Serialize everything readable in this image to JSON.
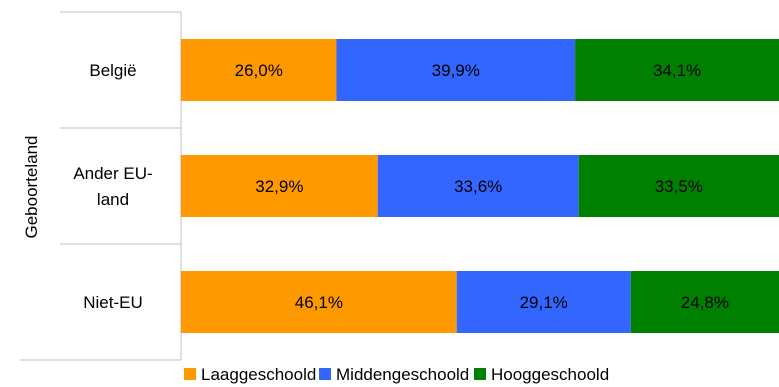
{
  "chart_data": {
    "type": "bar",
    "orientation": "horizontal",
    "stacked": true,
    "ylabel": "Geboorteland",
    "categories": [
      [
        "België"
      ],
      [
        "Ander EU-",
        "land"
      ],
      [
        "Niet-EU"
      ]
    ],
    "series": [
      {
        "name": "Laaggeschoold",
        "color": "#ff9900",
        "values": [
          26.0,
          32.9,
          46.1
        ],
        "labels": [
          "26,0%",
          "32,9%",
          "46,1%"
        ]
      },
      {
        "name": "Middengeschoold",
        "color": "#3366ff",
        "values": [
          39.9,
          33.6,
          29.1
        ],
        "labels": [
          "39,9%",
          "33,6%",
          "29,1%"
        ]
      },
      {
        "name": "Hooggeschoold",
        "color": "#008000",
        "values": [
          34.1,
          33.5,
          24.8
        ],
        "labels": [
          "34,1%",
          "33,5%",
          "24,8%"
        ]
      }
    ],
    "xlim": [
      0,
      100
    ],
    "grid": false,
    "legend_position": "bottom"
  }
}
